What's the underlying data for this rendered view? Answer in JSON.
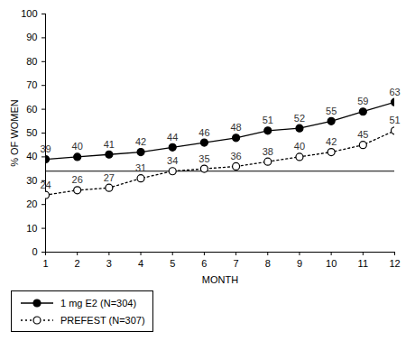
{
  "chart_data": {
    "type": "line",
    "x_label": "MONTH",
    "y_label": "% OF WOMEN",
    "x": [
      1,
      2,
      3,
      4,
      5,
      6,
      7,
      8,
      9,
      10,
      11,
      12
    ],
    "series": [
      {
        "name": "1 mg E2 (N=304)",
        "color": "#000000",
        "marker": "filled_circle",
        "line_style": "solid",
        "values": [
          39,
          40,
          41,
          42,
          44,
          46,
          48,
          51,
          52,
          55,
          59,
          63
        ]
      },
      {
        "name": "PREFEST (N=307)",
        "color": "#000000",
        "marker": "open_circle",
        "line_style": "dotted",
        "values": [
          24,
          26,
          27,
          31,
          34,
          35,
          36,
          38,
          40,
          42,
          45,
          51
        ]
      }
    ],
    "reference_line": 34,
    "xlim": [
      1,
      12
    ],
    "xticks": [
      1,
      2,
      3,
      4,
      5,
      6,
      7,
      8,
      9,
      10,
      11,
      12
    ],
    "ylim": [
      0,
      100
    ],
    "yticks": [
      0,
      10,
      20,
      30,
      40,
      50,
      60,
      70,
      80,
      90,
      100
    ],
    "data_labels": true,
    "grid": false
  }
}
